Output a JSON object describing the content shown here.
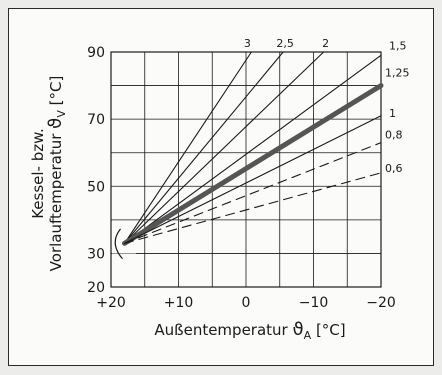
{
  "chart_data": {
    "type": "line",
    "title": "",
    "xlabel": "Außentemperatur",
    "xlabel_symbol": "ϑA",
    "xlabel_unit": "[°C]",
    "ylabel_line1": "Kessel- bzw.",
    "ylabel_line2": "Vorlauftemperatur",
    "ylabel_symbol": "ϑV",
    "ylabel_unit": "[°C]",
    "x_reversed": true,
    "xlim": [
      20,
      -20
    ],
    "ylim": [
      20,
      90
    ],
    "grid": true,
    "x_ticks": [
      20,
      10,
      0,
      -10,
      -20
    ],
    "x_tick_labels": [
      "+20",
      "+10",
      "0",
      "−10",
      "−20"
    ],
    "y_ticks": [
      20,
      30,
      50,
      70,
      90
    ],
    "y_tick_labels": [
      "20",
      "30",
      "50",
      "70",
      "90"
    ],
    "series": [
      {
        "name": "3",
        "style": "solid",
        "points": [
          [
            18,
            33
          ],
          [
            -0.8,
            90
          ]
        ]
      },
      {
        "name": "2,5",
        "style": "solid",
        "points": [
          [
            18,
            33
          ],
          [
            -5.5,
            90
          ]
        ]
      },
      {
        "name": "2",
        "style": "solid",
        "points": [
          [
            18,
            33
          ],
          [
            -11.5,
            90
          ]
        ]
      },
      {
        "name": "1,5",
        "style": "solid",
        "points": [
          [
            18,
            33
          ],
          [
            -20,
            89
          ]
        ]
      },
      {
        "name": "1,25",
        "style": "bold",
        "points": [
          [
            18,
            33
          ],
          [
            -20,
            80
          ]
        ]
      },
      {
        "name": "1",
        "style": "solid",
        "points": [
          [
            18,
            33
          ],
          [
            -20,
            71
          ]
        ]
      },
      {
        "name": "0,8",
        "style": "dashed",
        "points": [
          [
            18,
            33
          ],
          [
            -20,
            63
          ]
        ]
      },
      {
        "name": "0,6",
        "style": "dashed",
        "points": [
          [
            18,
            33
          ],
          [
            -20,
            54
          ]
        ]
      }
    ],
    "colors": {
      "line": "#1a1a1a",
      "bold_line": "#555555",
      "grid": "#1a1a1a"
    }
  }
}
